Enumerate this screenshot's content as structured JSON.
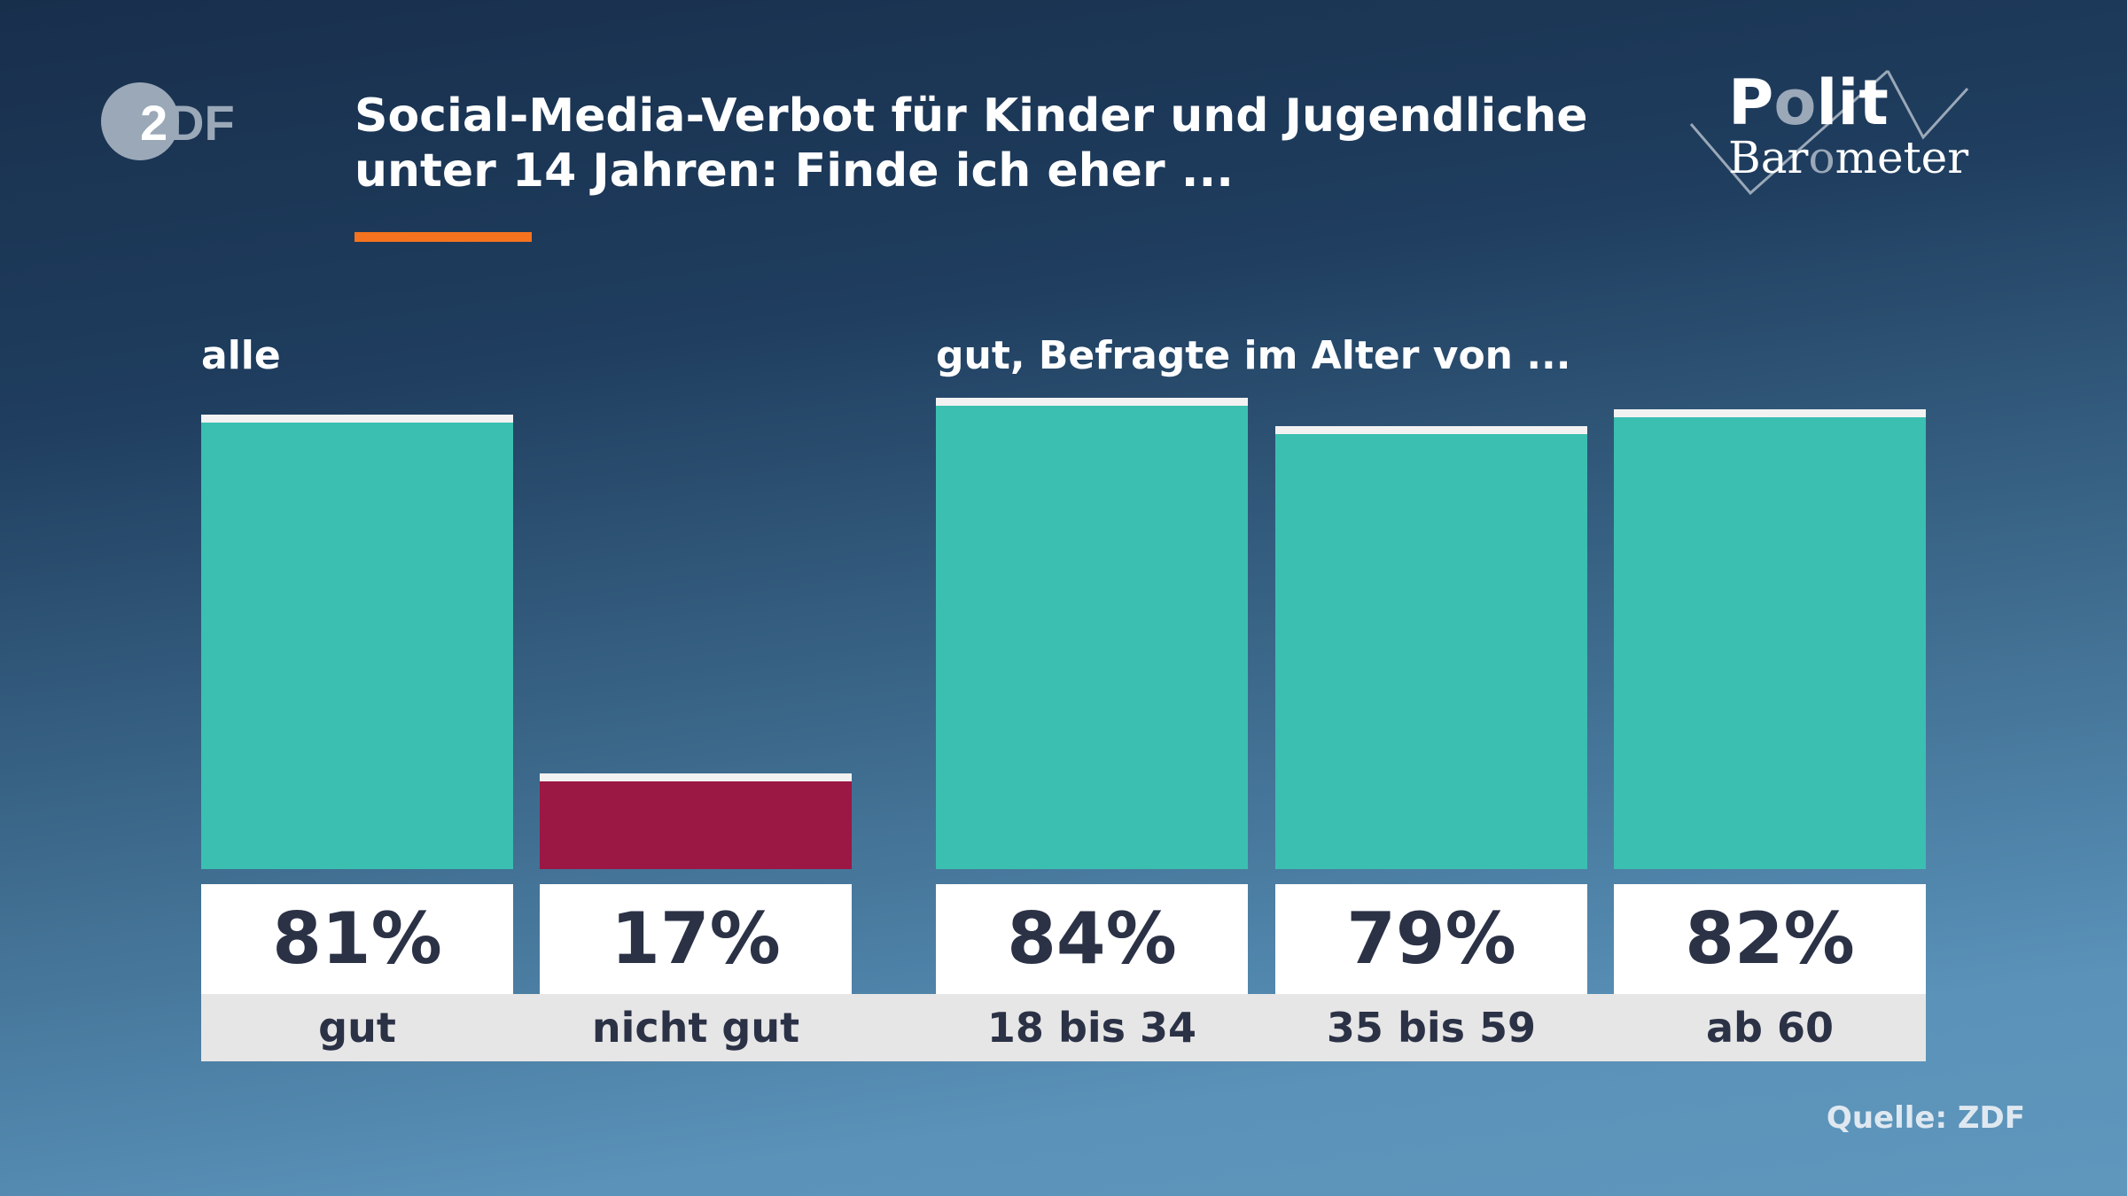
{
  "header": {
    "title_line1": "Social-Media-Verbot für Kinder und Jugendliche",
    "title_line2": "unter 14 Jahren: Finde ich eher ...",
    "logo_left": "ZDF",
    "logo_right": "PolitBarometer",
    "accent_color": "#f5731e"
  },
  "chart_data": {
    "type": "bar",
    "groups": [
      {
        "label": "alle",
        "categories": [
          "gut",
          "nicht gut"
        ]
      },
      {
        "label": "gut, Befragte im Alter von ...",
        "categories": [
          "18 bis 34",
          "35 bis 59",
          "ab 60"
        ]
      }
    ],
    "categories": [
      "gut",
      "nicht gut",
      "18 bis 34",
      "35 bis 59",
      "ab 60"
    ],
    "values": [
      81,
      17,
      84,
      79,
      82
    ],
    "value_labels": [
      "81%",
      "17%",
      "84%",
      "79%",
      "82%"
    ],
    "colors": [
      "#3bbfb1",
      "#9b1744",
      "#3bbfb1",
      "#3bbfb1",
      "#3bbfb1"
    ],
    "unit": "%",
    "ylim": [
      0,
      100
    ],
    "grid": false
  },
  "footer": {
    "source": "Quelle: ZDF"
  }
}
